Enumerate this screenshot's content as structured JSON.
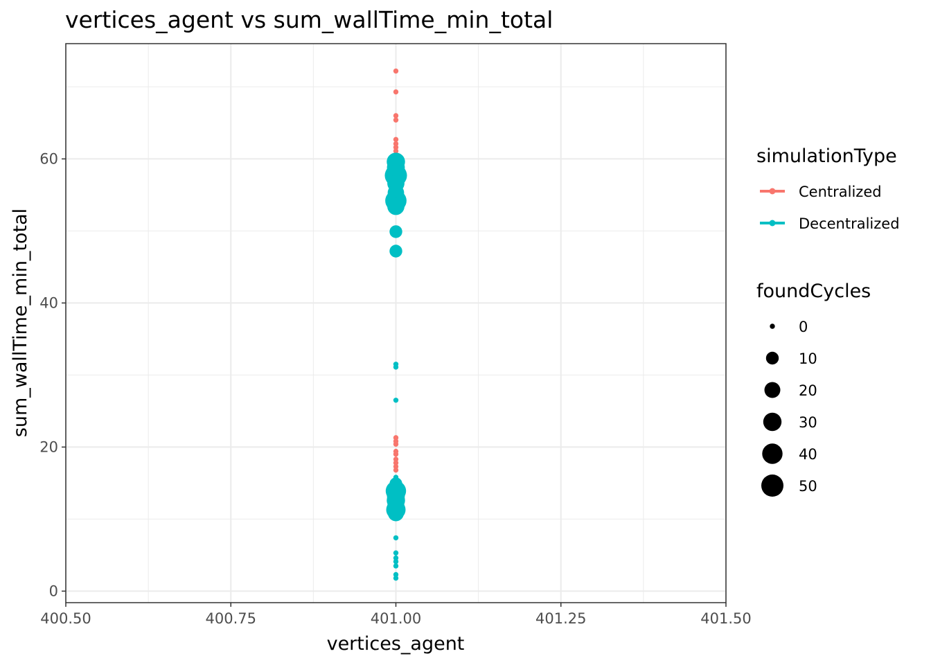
{
  "chart_data": {
    "type": "scatter",
    "title": "vertices_agent  vs  sum_wallTime_min_total",
    "xlabel": "vertices_agent",
    "ylabel": "sum_wallTime_min_total",
    "xlim": [
      400.5,
      401.5
    ],
    "ylim": [
      -1.6,
      76.0
    ],
    "x_ticks": [
      400.5,
      400.75,
      401.0,
      401.25,
      401.5
    ],
    "x_tick_labels": [
      "400.50",
      "400.75",
      "401.00",
      "401.25",
      "401.50"
    ],
    "y_ticks": [
      0,
      20,
      40,
      60
    ],
    "y_tick_labels": [
      "0",
      "20",
      "40",
      "60"
    ],
    "grid": true,
    "color_legend": {
      "title": "simulationType",
      "placement": "right",
      "entries": [
        {
          "label": "Centralized",
          "color": "#F8766D"
        },
        {
          "label": "Decentralized",
          "color": "#00BFC4"
        }
      ]
    },
    "size_legend": {
      "title": "foundCycles",
      "placement": "right",
      "values": [
        0,
        10,
        20,
        30,
        40,
        50
      ],
      "labels": [
        "0",
        "10",
        "20",
        "30",
        "40",
        "50"
      ]
    },
    "series": [
      {
        "name": "Centralized",
        "color": "#F8766D",
        "points": [
          {
            "x": 401.0,
            "y": 72.2,
            "size": 0
          },
          {
            "x": 401.0,
            "y": 69.3,
            "size": 0
          },
          {
            "x": 401.0,
            "y": 66.0,
            "size": 0
          },
          {
            "x": 401.0,
            "y": 65.4,
            "size": 0
          },
          {
            "x": 401.0,
            "y": 62.7,
            "size": 0
          },
          {
            "x": 401.0,
            "y": 62.1,
            "size": 0
          },
          {
            "x": 401.0,
            "y": 61.6,
            "size": 0
          },
          {
            "x": 401.0,
            "y": 61.1,
            "size": 0
          },
          {
            "x": 401.0,
            "y": 60.6,
            "size": 0
          },
          {
            "x": 401.0,
            "y": 60.2,
            "size": 0
          },
          {
            "x": 401.0,
            "y": 21.3,
            "size": 0
          },
          {
            "x": 401.0,
            "y": 20.8,
            "size": 0
          },
          {
            "x": 401.0,
            "y": 20.4,
            "size": 0
          },
          {
            "x": 401.0,
            "y": 19.4,
            "size": 0
          },
          {
            "x": 401.0,
            "y": 19.0,
            "size": 0
          },
          {
            "x": 401.0,
            "y": 18.3,
            "size": 0
          },
          {
            "x": 401.0,
            "y": 17.8,
            "size": 0
          },
          {
            "x": 401.0,
            "y": 17.3,
            "size": 0
          },
          {
            "x": 401.0,
            "y": 16.8,
            "size": 0
          }
        ]
      },
      {
        "name": "Decentralized",
        "color": "#00BFC4",
        "points": [
          {
            "x": 401.0,
            "y": 59.6,
            "size": 30
          },
          {
            "x": 401.0,
            "y": 58.8,
            "size": 28
          },
          {
            "x": 401.0,
            "y": 57.7,
            "size": 50
          },
          {
            "x": 401.0,
            "y": 56.6,
            "size": 25
          },
          {
            "x": 401.0,
            "y": 55.3,
            "size": 22
          },
          {
            "x": 401.0,
            "y": 54.2,
            "size": 45
          },
          {
            "x": 401.0,
            "y": 53.4,
            "size": 25
          },
          {
            "x": 401.0,
            "y": 49.9,
            "size": 10
          },
          {
            "x": 401.0,
            "y": 47.2,
            "size": 10
          },
          {
            "x": 401.0,
            "y": 31.5,
            "size": 0
          },
          {
            "x": 401.0,
            "y": 31.1,
            "size": 0
          },
          {
            "x": 401.0,
            "y": 26.5,
            "size": 0
          },
          {
            "x": 401.0,
            "y": 15.8,
            "size": 0
          },
          {
            "x": 401.0,
            "y": 14.9,
            "size": 10
          },
          {
            "x": 401.0,
            "y": 13.9,
            "size": 40
          },
          {
            "x": 401.0,
            "y": 13.2,
            "size": 28
          },
          {
            "x": 401.0,
            "y": 12.6,
            "size": 30
          },
          {
            "x": 401.0,
            "y": 11.8,
            "size": 25
          },
          {
            "x": 401.0,
            "y": 11.3,
            "size": 35
          },
          {
            "x": 401.0,
            "y": 10.8,
            "size": 20
          },
          {
            "x": 401.0,
            "y": 7.4,
            "size": 0
          },
          {
            "x": 401.0,
            "y": 5.3,
            "size": 0
          },
          {
            "x": 401.0,
            "y": 4.6,
            "size": 0
          },
          {
            "x": 401.0,
            "y": 4.1,
            "size": 0
          },
          {
            "x": 401.0,
            "y": 3.5,
            "size": 0
          },
          {
            "x": 401.0,
            "y": 2.3,
            "size": 0
          },
          {
            "x": 401.0,
            "y": 1.8,
            "size": 0
          }
        ]
      }
    ]
  }
}
